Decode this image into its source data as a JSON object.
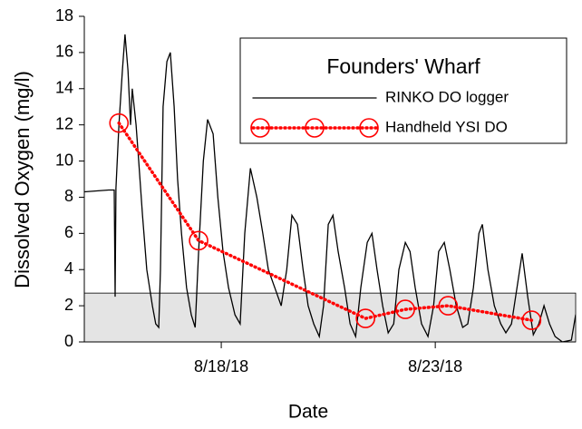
{
  "chart_data": {
    "type": "line",
    "legend_title": "Founders' Wharf",
    "x_label": "Date",
    "y_label": "Dissolved Oxygen (mg/l)",
    "xlim": [
      14.8,
      26.28
    ],
    "xticks": [
      {
        "value": 18,
        "label": "8/18/18"
      },
      {
        "value": 23,
        "label": "8/23/18"
      }
    ],
    "ylim": [
      0,
      18
    ],
    "yticks": [
      0,
      2,
      4,
      6,
      8,
      10,
      12,
      14,
      16,
      18
    ],
    "shaded_band": [
      0,
      2.7
    ],
    "legend": "upper right",
    "series": [
      {
        "name": "RINKO DO logger",
        "color": "#000000",
        "style": "solid",
        "x": [
          14.8,
          15.37,
          15.5,
          15.52,
          15.54,
          15.61,
          15.69,
          15.75,
          15.82,
          15.88,
          15.92,
          16.01,
          16.07,
          16.16,
          16.26,
          16.39,
          16.47,
          16.54,
          16.58,
          16.64,
          16.73,
          16.81,
          16.9,
          16.98,
          17.07,
          17.19,
          17.3,
          17.39,
          17.47,
          17.58,
          17.68,
          17.81,
          17.92,
          18.04,
          18.17,
          18.32,
          18.44,
          18.55,
          18.68,
          18.83,
          18.97,
          19.1,
          19.25,
          19.4,
          19.53,
          19.65,
          19.78,
          19.91,
          20.03,
          20.16,
          20.29,
          20.39,
          20.5,
          20.61,
          20.73,
          20.88,
          21.01,
          21.14,
          21.26,
          21.41,
          21.52,
          21.64,
          21.77,
          21.9,
          22.03,
          22.15,
          22.3,
          22.41,
          22.53,
          22.68,
          22.83,
          22.96,
          23.08,
          23.21,
          23.34,
          23.49,
          23.64,
          23.76,
          23.89,
          24.02,
          24.1,
          24.23,
          24.38,
          24.53,
          24.65,
          24.78,
          24.91,
          25.03,
          25.16,
          25.29,
          25.42,
          25.54,
          25.67,
          25.8,
          25.97,
          26.18,
          26.28
        ],
        "values": [
          8.3,
          8.4,
          8.4,
          2.5,
          8.5,
          12,
          15,
          17,
          15,
          12,
          14,
          12,
          10,
          7,
          4,
          2,
          1,
          0.8,
          4,
          13,
          15.5,
          16,
          13,
          9,
          6,
          3,
          1.5,
          0.8,
          5,
          10,
          12.3,
          11.5,
          8,
          5,
          3,
          1.5,
          1,
          6,
          9.6,
          8,
          6,
          4,
          3,
          2,
          4,
          7,
          6.5,
          4,
          2,
          1,
          0.3,
          2,
          6.5,
          7,
          5,
          3,
          1,
          0.3,
          3,
          5.5,
          6,
          4,
          2,
          0.5,
          1,
          4,
          5.5,
          5,
          3,
          1,
          0.3,
          2,
          5,
          5.5,
          4,
          2,
          0.8,
          1,
          3,
          6,
          6.5,
          4,
          2,
          1,
          0.5,
          1,
          3,
          4.9,
          2.5,
          0.4,
          1,
          2,
          1,
          0.3,
          0,
          0.1,
          1.5
        ]
      },
      {
        "name": "Handheld YSI DO",
        "color": "#ff0000",
        "style": "dotted-circles",
        "x": [
          15.61,
          17.47,
          21.37,
          22.3,
          23.3,
          25.25
        ],
        "values": [
          12.1,
          5.6,
          1.3,
          1.8,
          2.0,
          1.2
        ]
      }
    ]
  }
}
